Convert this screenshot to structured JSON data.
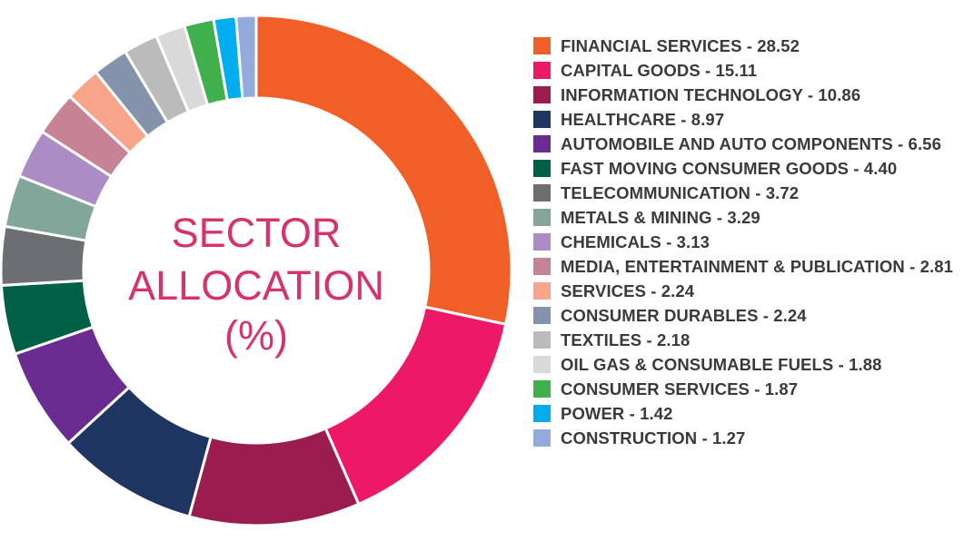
{
  "chart_data": {
    "type": "pie",
    "variant": "donut",
    "title_lines": [
      "SECTOR",
      "ALLOCATION",
      "(%)"
    ],
    "legend_position": "right",
    "slices": [
      {
        "label": "FINANCIAL SERVICES - 28.52",
        "value": 28.52,
        "color": "#f15f29"
      },
      {
        "label": "CAPITAL GOODS - 15.11",
        "value": 15.11,
        "color": "#ed1866"
      },
      {
        "label": "INFORMATION TECHNOLOGY - 10.86",
        "value": 10.86,
        "color": "#9b1c4f"
      },
      {
        "label": "HEALTHCARE - 8.97",
        "value": 8.97,
        "color": "#1d3560"
      },
      {
        "label": "AUTOMOBILE AND AUTO COMPONENTS - 6.56",
        "value": 6.56,
        "color": "#6b2c91"
      },
      {
        "label": "FAST MOVING CONSUMER GOODS - 4.40",
        "value": 4.4,
        "color": "#006046"
      },
      {
        "label": "TELECOMMUNICATION - 3.72",
        "value": 3.72,
        "color": "#6d6e71"
      },
      {
        "label": "METALS & MINING - 3.29",
        "value": 3.29,
        "color": "#82a79a"
      },
      {
        "label": "CHEMICALS - 3.13",
        "value": 3.13,
        "color": "#ac8cc4"
      },
      {
        "label": "MEDIA, ENTERTAINMENT & PUBLICATION - 2.81",
        "value": 2.81,
        "color": "#c78396"
      },
      {
        "label": "SERVICES - 2.24",
        "value": 2.24,
        "color": "#f7a48a"
      },
      {
        "label": "CONSUMER DURABLES - 2.24",
        "value": 2.24,
        "color": "#8592ab"
      },
      {
        "label": "TEXTILES - 2.18",
        "value": 2.18,
        "color": "#bbbbbb"
      },
      {
        "label": "OIL GAS & CONSUMABLE FUELS  - 1.88",
        "value": 1.88,
        "color": "#d9d9d9"
      },
      {
        "label": "CONSUMER SERVICES  - 1.87",
        "value": 1.87,
        "color": "#3fb04b"
      },
      {
        "label": "POWER  - 1.42",
        "value": 1.42,
        "color": "#00aeef"
      },
      {
        "label": "CONSTRUCTION  - 1.27",
        "value": 1.27,
        "color": "#93abdc"
      }
    ]
  }
}
